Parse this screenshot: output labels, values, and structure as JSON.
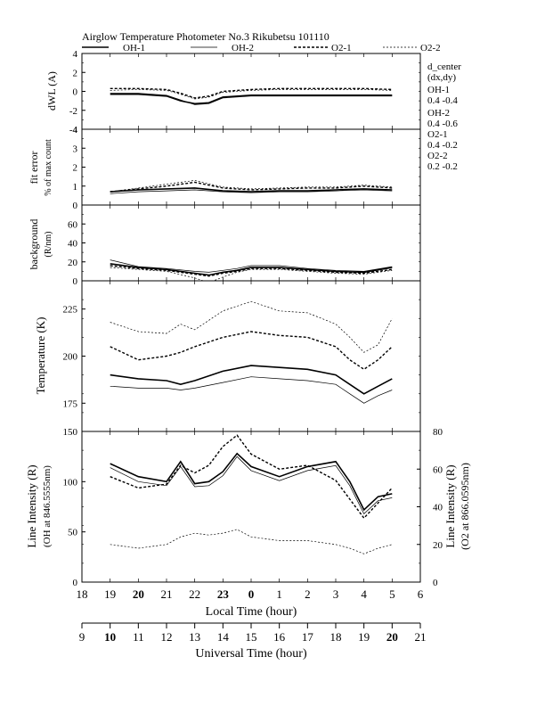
{
  "header": {
    "title": "Airglow Temperature Photometer No.3   Rikubetsu    101110"
  },
  "legend": [
    {
      "label": "OH-1",
      "style": "solid-bold"
    },
    {
      "label": "OH-2",
      "style": "solid-thin"
    },
    {
      "label": "O2-1",
      "style": "dashed-bold"
    },
    {
      "label": "O2-2",
      "style": "dashed-thin"
    }
  ],
  "side_notes": {
    "title": "d_center",
    "subtitle": "(dx,dy)",
    "rows": [
      {
        "name": "OH-1",
        "values": "0.4   -0.4"
      },
      {
        "name": "OH-2",
        "values": "0.4   -0.6"
      },
      {
        "name": "O2-1",
        "values": "0.4   -0.2"
      },
      {
        "name": "O2-2",
        "values": "0.2   -0.2"
      }
    ]
  },
  "axes": {
    "local_time_label": "Local Time (hour)",
    "local_time_ticks": [
      "18",
      "19",
      "20",
      "21",
      "22",
      "23",
      "0",
      "1",
      "2",
      "3",
      "4",
      "5",
      "6"
    ],
    "universal_time_label": "Universal Time (hour)",
    "universal_time_ticks": [
      "9",
      "10",
      "11",
      "12",
      "13",
      "14",
      "15",
      "16",
      "17",
      "18",
      "19",
      "20",
      "21"
    ]
  },
  "chart_data": [
    {
      "type": "line",
      "panel": "dWL",
      "ylabel": "dWL (A)",
      "ylim": [
        -4,
        4
      ],
      "yticks": [
        "4",
        "2",
        "0",
        "-2",
        "-4"
      ],
      "x_unit": "local time hour (19-29 = 19:00-05:00)",
      "series": [
        {
          "name": "OH-1",
          "style": "solid-bold",
          "x": [
            19,
            20,
            21,
            21.5,
            22,
            22.5,
            23,
            24,
            25,
            26,
            27,
            28,
            29
          ],
          "y": [
            -0.3,
            -0.3,
            -0.5,
            -1.0,
            -1.3,
            -1.2,
            -0.6,
            -0.4,
            -0.4,
            -0.4,
            -0.4,
            -0.4,
            -0.4
          ]
        },
        {
          "name": "OH-2",
          "style": "solid-thin",
          "x": [
            19,
            20,
            21,
            21.5,
            22,
            22.5,
            23,
            24,
            25,
            26,
            27,
            28,
            29
          ],
          "y": [
            -0.2,
            -0.2,
            -0.4,
            -0.9,
            -1.4,
            -1.3,
            -0.7,
            -0.5,
            -0.5,
            -0.5,
            -0.5,
            -0.5,
            -0.5
          ]
        },
        {
          "name": "O2-1",
          "style": "dashed-bold",
          "x": [
            19,
            20,
            21,
            21.5,
            22,
            22.5,
            23,
            24,
            25,
            26,
            27,
            28,
            29
          ],
          "y": [
            0.3,
            0.3,
            0.2,
            -0.2,
            -0.7,
            -0.5,
            0.0,
            0.2,
            0.3,
            0.3,
            0.3,
            0.3,
            0.2
          ]
        },
        {
          "name": "O2-2",
          "style": "dashed-thin",
          "x": [
            19,
            20,
            21,
            21.5,
            22,
            22.5,
            23,
            24,
            25,
            26,
            27,
            28,
            29
          ],
          "y": [
            0.1,
            0.2,
            0.1,
            -0.3,
            -0.8,
            -0.6,
            -0.1,
            0.1,
            0.2,
            0.2,
            0.2,
            0.2,
            0.1
          ]
        }
      ]
    },
    {
      "type": "line",
      "panel": "fit-error",
      "ylabel": "fit error",
      "ylabel2": "% of max count",
      "ylim": [
        0,
        4
      ],
      "yticks": [
        "4",
        "3",
        "2",
        "1",
        "0"
      ],
      "series": [
        {
          "name": "OH-1",
          "style": "solid-bold",
          "x": [
            19,
            20,
            21,
            22,
            23,
            24,
            25,
            26,
            27,
            28,
            29
          ],
          "y": [
            0.7,
            0.8,
            0.85,
            0.9,
            0.75,
            0.7,
            0.75,
            0.75,
            0.8,
            0.85,
            0.8
          ]
        },
        {
          "name": "OH-2",
          "style": "solid-thin",
          "x": [
            19,
            20,
            21,
            22,
            23,
            24,
            25,
            26,
            27,
            28,
            29
          ],
          "y": [
            0.6,
            0.7,
            0.75,
            0.8,
            0.7,
            0.65,
            0.7,
            0.7,
            0.75,
            0.8,
            0.75
          ]
        },
        {
          "name": "O2-1",
          "style": "dashed-bold",
          "x": [
            19,
            20,
            21,
            22,
            23,
            24,
            25,
            26,
            27,
            28,
            29
          ],
          "y": [
            0.7,
            0.85,
            1.0,
            1.2,
            0.9,
            0.8,
            0.85,
            0.9,
            0.9,
            1.0,
            0.9
          ]
        },
        {
          "name": "O2-2",
          "style": "dashed-thin",
          "x": [
            19,
            20,
            21,
            22,
            23,
            24,
            25,
            26,
            27,
            28,
            29
          ],
          "y": [
            0.7,
            0.9,
            1.1,
            1.3,
            0.95,
            0.85,
            0.9,
            0.95,
            0.95,
            1.05,
            0.95
          ]
        }
      ]
    },
    {
      "type": "line",
      "panel": "background",
      "ylabel": "background",
      "ylabel2": "(R/nm)",
      "ylim": [
        0,
        80
      ],
      "yticks": [
        "60",
        "40",
        "20",
        "0"
      ],
      "series": [
        {
          "name": "OH-1",
          "style": "solid-bold",
          "x": [
            19,
            20,
            21,
            22,
            22.5,
            23,
            23.5,
            24,
            25,
            26,
            27,
            28,
            29
          ],
          "y": [
            18,
            14,
            12,
            8,
            6,
            9,
            11,
            14,
            14,
            12,
            10,
            9,
            14
          ]
        },
        {
          "name": "OH-2",
          "style": "solid-thin",
          "x": [
            19,
            20,
            21,
            22,
            22.5,
            23,
            23.5,
            24,
            25,
            26,
            27,
            28,
            29
          ],
          "y": [
            22,
            15,
            13,
            10,
            9,
            11,
            13,
            16,
            16,
            13,
            11,
            10,
            15
          ]
        },
        {
          "name": "O2-1",
          "style": "dashed-bold",
          "x": [
            19,
            20,
            21,
            22,
            22.5,
            23,
            23.5,
            24,
            25,
            26,
            27,
            28,
            29
          ],
          "y": [
            16,
            13,
            11,
            7,
            5,
            8,
            10,
            13,
            13,
            11,
            9,
            8,
            12
          ]
        },
        {
          "name": "O2-2",
          "style": "dashed-thin",
          "x": [
            19,
            20,
            21,
            22,
            22.5,
            23,
            23.5,
            24,
            25,
            26,
            27,
            28,
            29
          ],
          "y": [
            14,
            12,
            10,
            3,
            -2,
            4,
            9,
            12,
            12,
            10,
            8,
            7,
            11
          ]
        }
      ]
    },
    {
      "type": "line",
      "panel": "temperature",
      "ylabel": "Temperature (K)",
      "ylim": [
        160,
        240
      ],
      "yticks": [
        "225",
        "200",
        "175"
      ],
      "series": [
        {
          "name": "OH-1",
          "style": "solid-bold",
          "x": [
            19,
            20,
            21,
            21.5,
            22,
            23,
            24,
            25,
            26,
            27,
            27.5,
            28,
            28.5,
            29
          ],
          "y": [
            190,
            188,
            187,
            185,
            187,
            192,
            195,
            194,
            193,
            190,
            185,
            180,
            184,
            188
          ]
        },
        {
          "name": "OH-2",
          "style": "solid-thin",
          "x": [
            19,
            20,
            21,
            21.5,
            22,
            23,
            24,
            25,
            26,
            27,
            27.5,
            28,
            28.5,
            29
          ],
          "y": [
            184,
            183,
            183,
            182,
            183,
            186,
            189,
            188,
            187,
            185,
            180,
            175,
            179,
            182
          ]
        },
        {
          "name": "O2-1",
          "style": "dashed-bold",
          "x": [
            19,
            20,
            21,
            21.5,
            22,
            23,
            24,
            25,
            26,
            27,
            27.5,
            28,
            28.5,
            29
          ],
          "y": [
            205,
            198,
            200,
            202,
            205,
            210,
            213,
            211,
            210,
            205,
            198,
            193,
            198,
            205
          ]
        },
        {
          "name": "O2-2",
          "style": "dashed-thin",
          "x": [
            19,
            20,
            21,
            21.5,
            22,
            23,
            24,
            25,
            26,
            27,
            27.5,
            28,
            28.5,
            29
          ],
          "y": [
            218,
            213,
            212,
            217,
            214,
            224,
            229,
            224,
            223,
            217,
            210,
            202,
            206,
            220
          ]
        }
      ]
    },
    {
      "type": "line",
      "panel": "line-intensity",
      "ylabel": "Line Intensity (R)",
      "ylabel2": "(OH at 846.5555nm)",
      "ylim": [
        0,
        150
      ],
      "yticks": [
        "150",
        "100",
        "50",
        "0"
      ],
      "right_ylabel": "Line Intensity (R)",
      "right_ylabel2": "(O2 at 866.0595nm)",
      "right_ylim": [
        0,
        80
      ],
      "right_yticks": [
        "80",
        "60",
        "40",
        "20",
        "0"
      ],
      "series": [
        {
          "name": "OH-1",
          "axis": "left",
          "style": "solid-bold",
          "x": [
            19,
            20,
            21,
            21.5,
            22,
            22.5,
            23,
            23.5,
            24,
            25,
            26,
            27,
            27.5,
            28,
            28.5,
            29
          ],
          "y": [
            118,
            105,
            100,
            120,
            98,
            100,
            110,
            128,
            115,
            105,
            115,
            120,
            100,
            72,
            85,
            88
          ]
        },
        {
          "name": "OH-2",
          "axis": "left",
          "style": "solid-thin",
          "x": [
            19,
            20,
            21,
            21.5,
            22,
            22.5,
            23,
            23.5,
            24,
            25,
            26,
            27,
            27.5,
            28,
            28.5,
            29
          ],
          "y": [
            114,
            100,
            96,
            115,
            95,
            96,
            106,
            125,
            111,
            101,
            111,
            116,
            96,
            68,
            81,
            84
          ]
        },
        {
          "name": "O2-1",
          "axis": "right",
          "style": "dashed-bold",
          "x": [
            19,
            20,
            21,
            21.5,
            22,
            22.5,
            23,
            23.5,
            24,
            25,
            26,
            27,
            27.5,
            28,
            28.5,
            29
          ],
          "y": [
            56,
            50,
            52,
            62,
            58,
            62,
            72,
            78,
            68,
            60,
            62,
            54,
            44,
            34,
            42,
            50
          ]
        },
        {
          "name": "O2-2",
          "axis": "right",
          "style": "dashed-thin",
          "x": [
            19,
            20,
            21,
            21.5,
            22,
            22.5,
            23,
            23.5,
            24,
            25,
            26,
            27,
            27.5,
            28,
            28.5,
            29
          ],
          "y": [
            20,
            18,
            20,
            24,
            26,
            25,
            26,
            28,
            24,
            22,
            22,
            20,
            18,
            15,
            18,
            20
          ]
        }
      ]
    }
  ]
}
